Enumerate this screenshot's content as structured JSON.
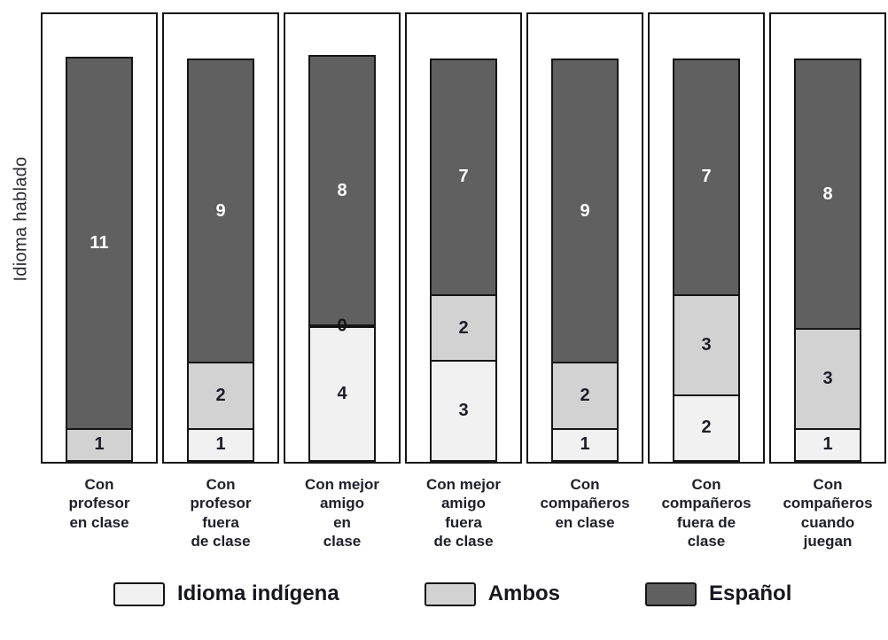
{
  "figure": {
    "ylabel": "Idioma hablado"
  },
  "chart_data": {
    "type": "bar",
    "stacked": true,
    "orientation": "vertical",
    "title": "",
    "xlabel": "",
    "ylabel": "Idioma hablado",
    "ylim": [
      0,
      12
    ],
    "total_per_bar": 12,
    "grid": false,
    "legend_position": "bottom",
    "categories": [
      "Con\nprofesor\nen clase",
      "Con\nprofesor\nfuera\nde clase",
      "Con mejor\namigo\nen\nclase",
      "Con mejor\namigo\nfuera\nde clase",
      "Con\ncompañeros\nen clase",
      "Con\ncompañeros\nfuera de\nclase",
      "Con\ncompañeros\ncuando\njuegan"
    ],
    "series": [
      {
        "name": "Idioma indígena",
        "slug": "idioma-indigena",
        "color": "#f1f1f1",
        "label_color": "#1d1d28",
        "values": [
          0,
          1,
          4,
          3,
          1,
          2,
          1
        ],
        "labels": [
          "",
          "1",
          "4",
          "3",
          "1",
          "2",
          "1"
        ]
      },
      {
        "name": "Ambos",
        "slug": "ambos",
        "color": "#d2d2d2",
        "label_color": "#1d1d28",
        "values": [
          1,
          2,
          0,
          2,
          2,
          3,
          3
        ],
        "labels": [
          "1",
          "2",
          "0",
          "2",
          "2",
          "3",
          "3"
        ]
      },
      {
        "name": "Español",
        "slug": "espanol",
        "color": "#606060",
        "label_color": "#ffffff",
        "values": [
          11,
          9,
          8,
          7,
          9,
          7,
          8
        ],
        "labels": [
          "11",
          "9",
          "8",
          "7",
          "9",
          "7",
          "8"
        ]
      }
    ]
  }
}
